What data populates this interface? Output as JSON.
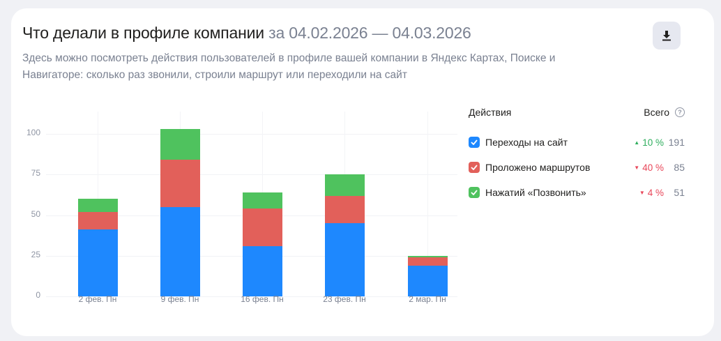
{
  "header": {
    "title": "Что делали в профиле компании",
    "date_range": "за 04.02.2026 — 04.03.2026",
    "subtitle": "Здесь можно посмотреть действия пользователей в профиле вашей компании в Яндекс Картах, Поиске и Навигаторе: сколько раз звонили, строили маршрут или переходили на сайт",
    "download_icon": "download-icon"
  },
  "legend": {
    "actions_label": "Действия",
    "total_label": "Всего",
    "help_icon": "?",
    "items": [
      {
        "label": "Переходы на сайт",
        "color": "#1e88fe",
        "trend": "up",
        "trend_symbol": "▲",
        "delta": "10 %",
        "delta_color": "#2fae5e",
        "total": "191",
        "checked": true
      },
      {
        "label": "Проложено маршрутов",
        "color": "#e2605a",
        "trend": "down",
        "trend_symbol": "▼",
        "delta": "40 %",
        "delta_color": "#e8475a",
        "total": "85",
        "checked": true
      },
      {
        "label": "Нажатий «Позвонить»",
        "color": "#4fc25e",
        "trend": "down",
        "trend_symbol": "▼",
        "delta": "4 %",
        "delta_color": "#e8475a",
        "total": "51",
        "checked": true
      }
    ]
  },
  "chart_data": {
    "type": "bar",
    "stacked": true,
    "title": "Что делали в профиле компании за 04.02.2026 — 04.03.2026",
    "categories": [
      "2 фев. Пн",
      "9 фев. Пн",
      "16 фев. Пн",
      "23 фев. Пн",
      "2 мар. Пн"
    ],
    "series": [
      {
        "name": "Переходы на сайт",
        "color": "#1e88fe",
        "values": [
          41,
          55,
          31,
          45,
          19
        ]
      },
      {
        "name": "Проложено маршрутов",
        "color": "#e2605a",
        "values": [
          11,
          29,
          23,
          17,
          5
        ]
      },
      {
        "name": "Нажатий «Позвонить»",
        "color": "#4fc25e",
        "values": [
          8,
          19,
          10,
          13,
          1
        ]
      }
    ],
    "y_ticks": [
      "0",
      "25",
      "50",
      "75",
      "100"
    ],
    "ylim": [
      0,
      105
    ],
    "xlabel": "",
    "ylabel": "",
    "grid": true,
    "legend_position": "right"
  }
}
